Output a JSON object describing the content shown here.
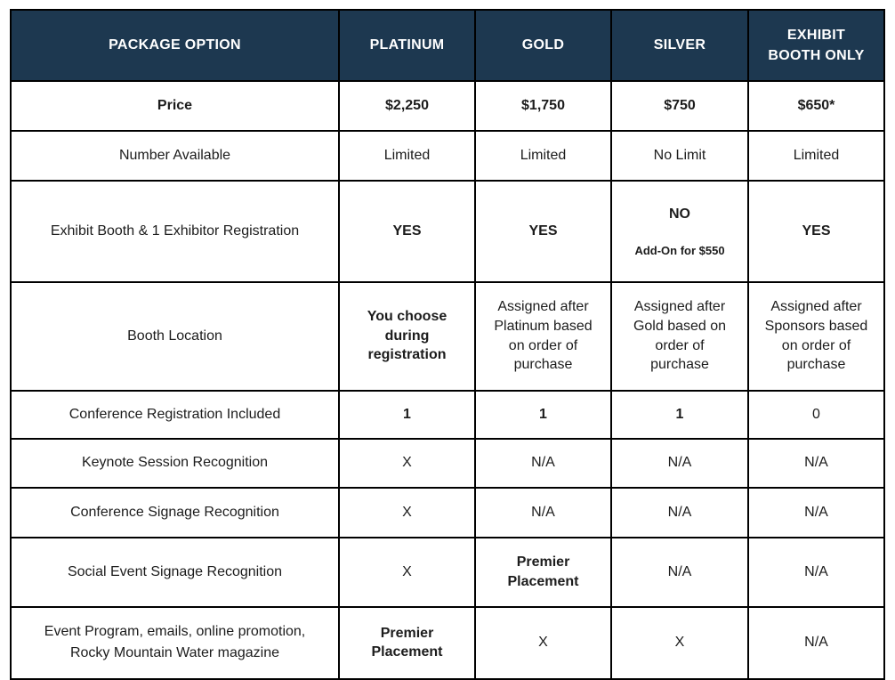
{
  "table": {
    "colors": {
      "header_background": "#1d3850",
      "header_text": "#ffffff",
      "border": "#000000",
      "body_text": "#1c1c1c"
    },
    "columns": [
      "PACKAGE OPTION",
      "PLATINUM",
      "GOLD",
      "SILVER",
      "EXHIBIT\nBOOTH ONLY"
    ],
    "rows": [
      {
        "label": "Price",
        "cells": [
          "$2,250",
          "$1,750",
          "$750",
          "$650*"
        ]
      },
      {
        "label": "Number Available",
        "cells": [
          "Limited",
          "Limited",
          "No Limit",
          "Limited"
        ]
      },
      {
        "label": "Exhibit Booth & 1 Exhibitor Registration",
        "cells": [
          "YES",
          "YES",
          "NO",
          "YES"
        ],
        "silver_note": "Add-On for $550"
      },
      {
        "label": "Booth Location",
        "cells": [
          "You choose\nduring\nregistration",
          "Assigned after\nPlatinum based\non order of\npurchase",
          "Assigned after\nGold based on\norder of\npurchase",
          "Assigned after\nSponsors based\non order of\npurchase"
        ]
      },
      {
        "label": "Conference Registration Included",
        "cells": [
          "1",
          "1",
          "1",
          "0"
        ]
      },
      {
        "label": "Keynote Session Recognition",
        "cells": [
          "X",
          "N/A",
          "N/A",
          "N/A"
        ]
      },
      {
        "label": "Conference Signage Recognition",
        "cells": [
          "X",
          "N/A",
          "N/A",
          "N/A"
        ]
      },
      {
        "label": "Social Event Signage Recognition",
        "cells": [
          "X",
          "Premier\nPlacement",
          "N/A",
          "N/A"
        ]
      },
      {
        "label": "Event Program, emails, online promotion,\nRocky Mountain Water magazine",
        "cells": [
          "Premier\nPlacement",
          "X",
          "X",
          "N/A"
        ]
      }
    ]
  }
}
